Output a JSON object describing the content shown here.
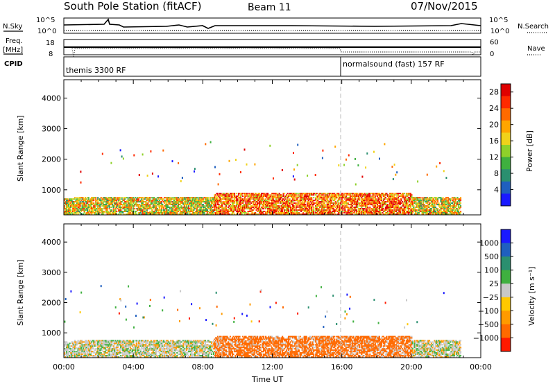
{
  "header": {
    "station": "South Pole Station (fitACF)",
    "beam": "Beam 11",
    "date": "07/Nov/2015"
  },
  "top_panels": {
    "nsky_label": "N.Sky",
    "nsky_ticks": [
      "10^5",
      "10^0"
    ],
    "nsearch_label": "N.Search",
    "nsearch_ticks": [
      "10^5",
      "10^0"
    ],
    "freq_label_1": "Freq.",
    "freq_label_2": "[MHz]",
    "freq_ticks": [
      "18",
      "8"
    ],
    "nave_label": "Nave",
    "nave_ticks": [
      "60",
      "0"
    ],
    "cpid_label": "CPID",
    "cpid_modes": [
      {
        "text": "themis 3300 RF",
        "start_hour": 0
      },
      {
        "text": "normalsound (fast) 157 RF",
        "start_hour": 16
      }
    ]
  },
  "chart_data": [
    {
      "type": "heatmap",
      "name": "power",
      "xlabel": "",
      "ylabel": "Slant Range [km]",
      "xlim": [
        0,
        24
      ],
      "ylim": [
        180,
        4600
      ],
      "yticks": [
        "1000",
        "2000",
        "3000",
        "4000"
      ],
      "colorbar_label": "Power [dB]",
      "colorbar_ticks": [
        "4",
        "8",
        "12",
        "16",
        "20",
        "24",
        "28"
      ],
      "colorbar_range": [
        0,
        30
      ],
      "colors": [
        "#1a1aff",
        "#1f5fbf",
        "#2a8f6f",
        "#3fb03f",
        "#8fd12a",
        "#f0d21a",
        "#ffa500",
        "#ff6a00",
        "#ff2a00",
        "#e00000"
      ],
      "dominant_band_km": [
        180,
        800
      ]
    },
    {
      "type": "heatmap",
      "name": "velocity",
      "xlabel": "Time UT",
      "ylabel": "Slant Range [km]",
      "xlim": [
        0,
        24
      ],
      "ylim": [
        180,
        4600
      ],
      "xticks": [
        "00:00",
        "04:00",
        "08:00",
        "12:00",
        "16:00",
        "20:00",
        "00:00"
      ],
      "yticks": [
        "1000",
        "2000",
        "3000",
        "4000"
      ],
      "colorbar_label": "Velocity [m s⁻¹]",
      "colorbar_ticks": [
        "1000",
        "500",
        "100",
        "25",
        "−25",
        "−100",
        "−500",
        "−1000"
      ],
      "colors": [
        "#1a1aff",
        "#1f5fbf",
        "#2a8f6f",
        "#3fb03f",
        "#c8c8c8",
        "#ffc800",
        "#ff9a00",
        "#ff6a00",
        "#ff1a00"
      ],
      "dominant_band_km": [
        180,
        800
      ]
    }
  ]
}
